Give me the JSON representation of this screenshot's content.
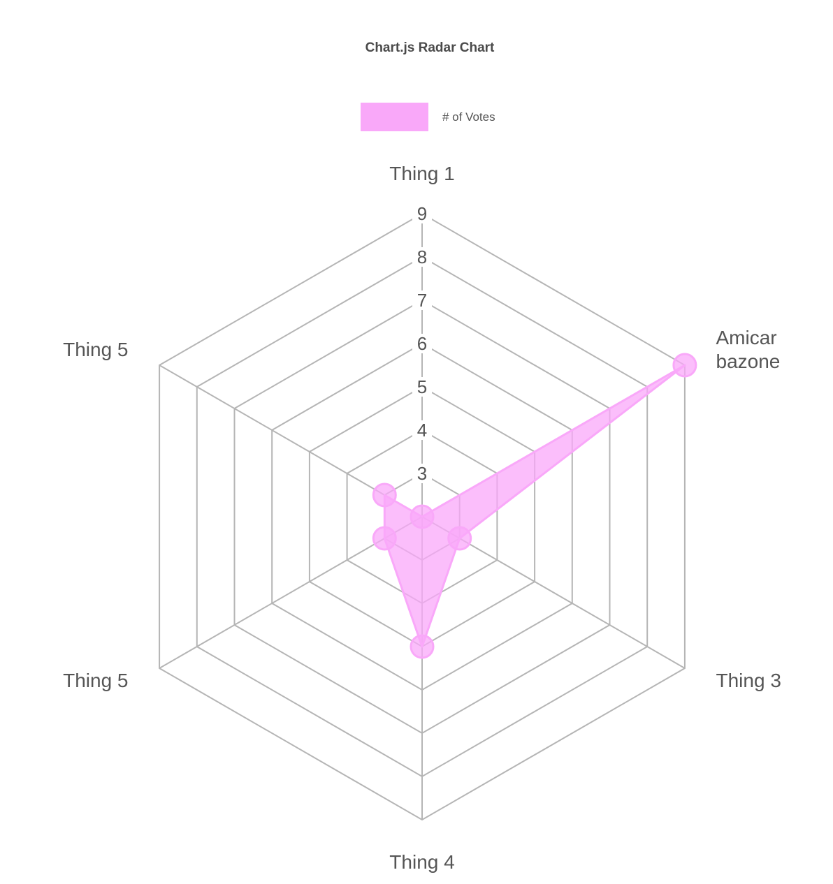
{
  "chart_data": {
    "type": "radar",
    "title": "Chart.js Radar Chart",
    "labels": [
      [
        "Thing 1"
      ],
      [
        "Amicar",
        "bazone"
      ],
      [
        "Thing 3"
      ],
      [
        "Thing 4"
      ],
      [
        "Thing 5"
      ],
      [
        "Thing 5"
      ]
    ],
    "series": [
      {
        "name": "# of Votes",
        "values": [
          2,
          9,
          3,
          5,
          3,
          3
        ],
        "color": "#f9a8f9",
        "fill": "rgba(249,168,249,0.75)"
      }
    ],
    "scale": {
      "min": 2,
      "max": 9,
      "step": 1
    },
    "tick_labels": [
      "3",
      "4",
      "5",
      "6",
      "7",
      "8",
      "9"
    ],
    "grid": true,
    "legend_position": "top"
  }
}
